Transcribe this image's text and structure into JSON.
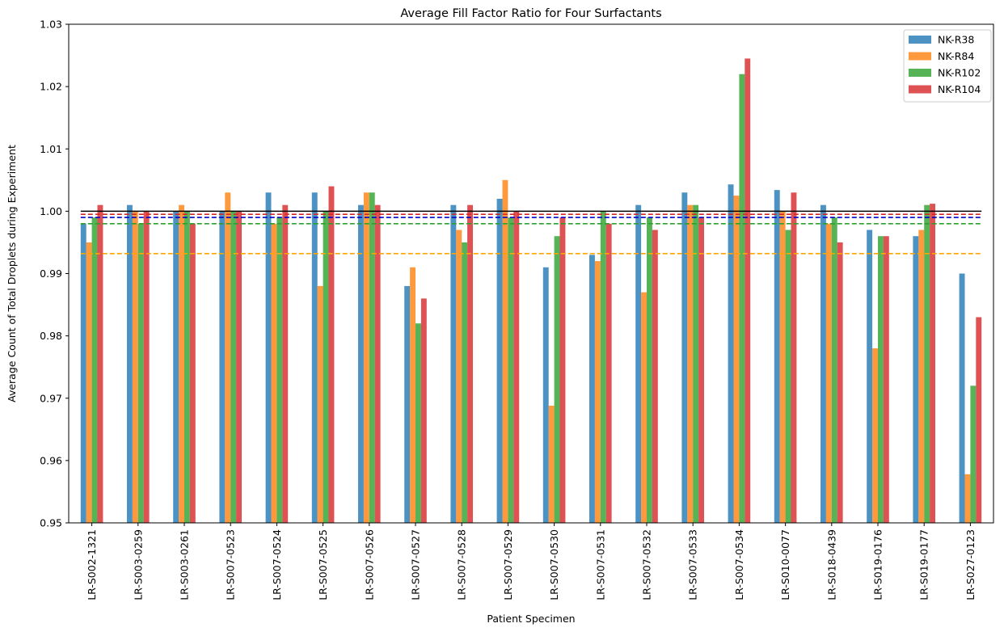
{
  "chart_data": {
    "type": "bar",
    "title": "Average Fill Factor Ratio for Four Surfactants",
    "xlabel": "Patient Specimen",
    "ylabel": "Average Count of Total Droplets during Experiment",
    "ylim": [
      0.95,
      1.03
    ],
    "yticks": [
      "0.95",
      "0.96",
      "0.97",
      "0.98",
      "0.99",
      "1.00",
      "1.01",
      "1.02",
      "1.03"
    ],
    "grid": false,
    "legend_position": "top-right",
    "categories": [
      "LR-S002-1321",
      "LR-S003-0259",
      "LR-S003-0261",
      "LR-S007-0523",
      "LR-S007-0524",
      "LR-S007-0525",
      "LR-S007-0526",
      "LR-S007-0527",
      "LR-S007-0528",
      "LR-S007-0529",
      "LR-S007-0530",
      "LR-S007-0531",
      "LR-S007-0532",
      "LR-S007-0533",
      "LR-S007-0534",
      "LR-S010-0077",
      "LR-S018-0439",
      "LR-S019-0176",
      "LR-S019-0177",
      "LR-S027-0123"
    ],
    "series": [
      {
        "name": "NK-R38",
        "color": "#1f77b4",
        "values": [
          0.998,
          1.001,
          1.0,
          1.0,
          1.003,
          1.003,
          1.001,
          0.988,
          1.001,
          1.002,
          0.991,
          0.993,
          1.001,
          1.003,
          1.0043,
          1.0034,
          1.001,
          0.997,
          0.996,
          0.99
        ]
      },
      {
        "name": "NK-R84",
        "color": "#ff7f0e",
        "values": [
          0.995,
          1.0,
          1.001,
          1.003,
          0.998,
          0.988,
          1.003,
          0.991,
          0.997,
          1.005,
          0.9688,
          0.992,
          0.987,
          1.001,
          1.0025,
          1.0,
          0.998,
          0.978,
          0.997,
          0.9578
        ]
      },
      {
        "name": "NK-R102",
        "color": "#2ca02c",
        "values": [
          0.999,
          0.998,
          1.0,
          1.0,
          0.999,
          1.0,
          1.003,
          0.982,
          0.995,
          0.999,
          0.996,
          1.0,
          0.999,
          1.001,
          1.022,
          0.997,
          0.999,
          0.996,
          1.001,
          0.972
        ]
      },
      {
        "name": "NK-R104",
        "color": "#d62728",
        "values": [
          1.001,
          1.0,
          0.998,
          1.0,
          1.001,
          1.004,
          1.001,
          0.986,
          1.001,
          1.0,
          0.999,
          0.998,
          0.997,
          0.999,
          1.0245,
          1.003,
          0.995,
          0.996,
          1.0012,
          0.983
        ]
      }
    ],
    "reference_lines": [
      {
        "value": 1.0,
        "color": "#000000",
        "style": "solid"
      },
      {
        "value": 0.9995,
        "color": "#d62728",
        "style": "dashed"
      },
      {
        "value": 0.999,
        "color": "#0000cc",
        "style": "dashed"
      },
      {
        "value": 0.998,
        "color": "#2ca02c",
        "style": "dashed"
      },
      {
        "value": 0.9932,
        "color": "#ffa500",
        "style": "dashed"
      }
    ]
  }
}
